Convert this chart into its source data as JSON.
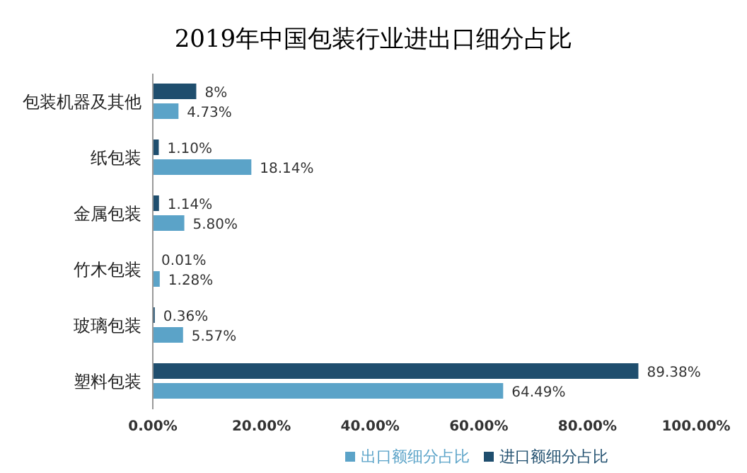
{
  "chart_data": {
    "type": "bar",
    "orientation": "horizontal",
    "title": "2019年中国包装行业进出口细分占比",
    "categories": [
      "包装机器及其他",
      "纸包装",
      "金属包装",
      "竹木包装",
      "玻璃包装",
      "塑料包装"
    ],
    "series": [
      {
        "name": "进口额细分占比",
        "color": "#1f4e6e",
        "values": [
          8,
          1.1,
          1.14,
          0.01,
          0.36,
          89.38
        ],
        "value_labels": [
          "8%",
          "1.10%",
          "1.14%",
          "0.01%",
          "0.36%",
          "89.38%"
        ]
      },
      {
        "name": "出口额细分占比",
        "color": "#5ba3c8",
        "values": [
          4.73,
          18.14,
          5.8,
          1.28,
          5.57,
          64.49
        ],
        "value_labels": [
          "4.73%",
          "18.14%",
          "5.80%",
          "1.28%",
          "5.57%",
          "64.49%"
        ]
      }
    ],
    "xlim": [
      0,
      100
    ],
    "xticks": [
      {
        "value": 0,
        "label": "0.00%"
      },
      {
        "value": 20,
        "label": "20.00%"
      },
      {
        "value": 40,
        "label": "40.00%"
      },
      {
        "value": 60,
        "label": "60.00%"
      },
      {
        "value": 80,
        "label": "80.00%"
      },
      {
        "value": 100,
        "label": "100.00%"
      }
    ],
    "legend": "bottom",
    "grid": false
  }
}
